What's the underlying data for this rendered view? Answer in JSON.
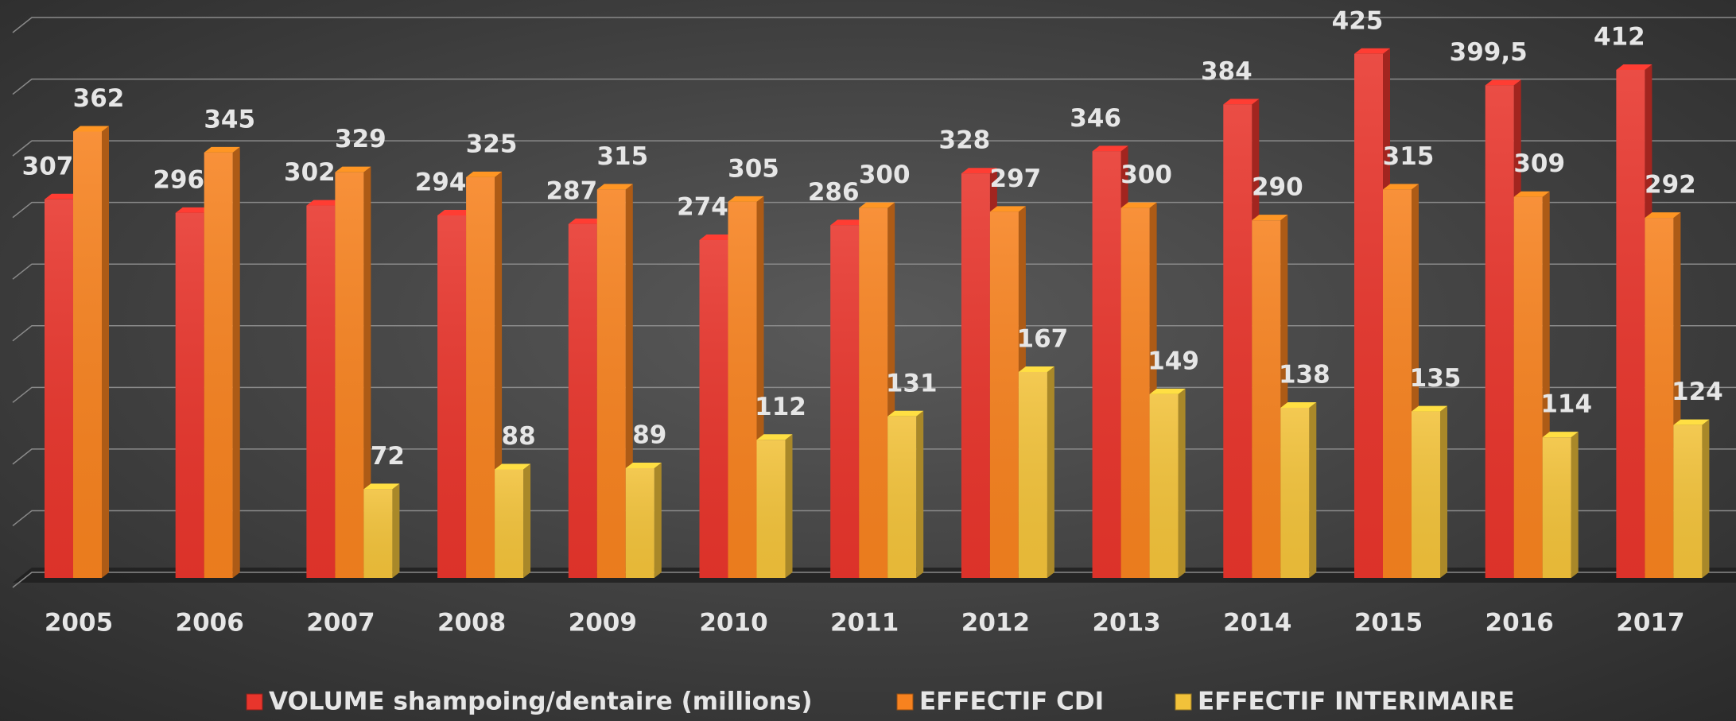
{
  "chart_data": {
    "type": "bar",
    "categories": [
      "2005",
      "2006",
      "2007",
      "2008",
      "2009",
      "2010",
      "2011",
      "2012",
      "2013",
      "2014",
      "2015",
      "2016",
      "2017"
    ],
    "series": [
      {
        "name": "VOLUME shampoing/dentaire (millions)",
        "color": "#e8352c",
        "values": [
          307,
          296,
          302,
          294,
          287,
          274,
          286,
          328,
          346,
          384,
          425,
          399.5,
          412
        ],
        "value_labels": [
          "307",
          "296",
          "302",
          "294",
          "287",
          "274",
          "286",
          "328",
          "346",
          "384",
          "425",
          "399,5",
          "412"
        ]
      },
      {
        "name": "EFFECTIF CDI",
        "color": "#f7821f",
        "values": [
          362,
          345,
          329,
          325,
          315,
          305,
          300,
          297,
          300,
          290,
          315,
          309,
          292
        ]
      },
      {
        "name": "EFFECTIF INTERIMAIRE",
        "color": "#f2c23a",
        "values": [
          null,
          null,
          72,
          88,
          89,
          112,
          131,
          167,
          149,
          138,
          135,
          114,
          124
        ]
      }
    ],
    "ylim": [
      0,
      450
    ],
    "yticks": [
      0,
      50,
      100,
      150,
      200,
      250,
      300,
      350,
      400,
      450
    ],
    "grid": true,
    "legend": "bottom"
  }
}
